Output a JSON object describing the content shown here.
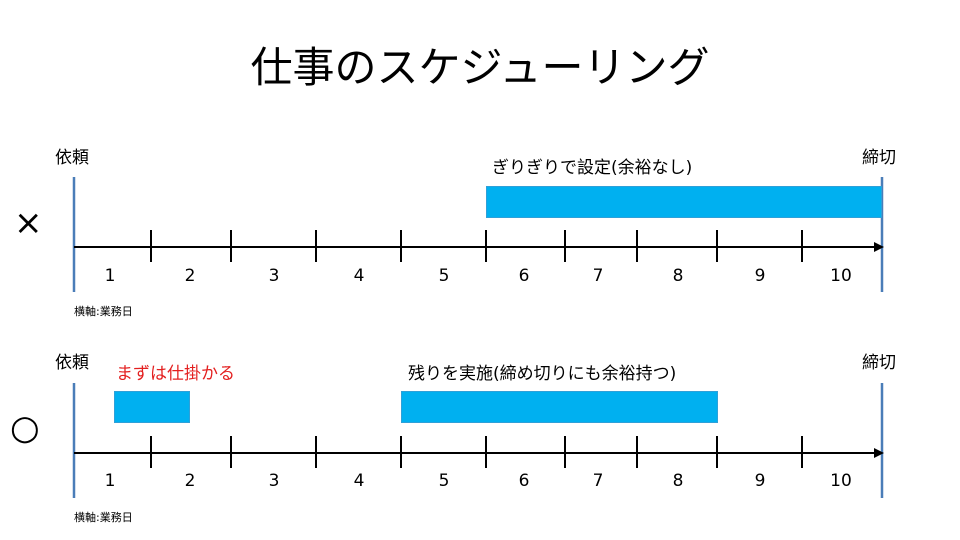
{
  "title": "仕事のスケジューリング",
  "rows": [
    {
      "mark": "×",
      "start_label": "依頼",
      "end_label": "締切",
      "task_label": "ぎりぎりで設定(余裕なし)",
      "extra_label": "",
      "x_ticks": [
        "1",
        "2",
        "3",
        "4",
        "5",
        "6",
        "7",
        "8",
        "9",
        "10"
      ],
      "x_caption": "横軸:業務日"
    },
    {
      "mark": "○",
      "start_label": "依頼",
      "end_label": "締切",
      "task_label": "残りを実施(締め切りにも余裕持つ)",
      "extra_label": "まずは仕掛かる",
      "x_ticks": [
        "1",
        "2",
        "3",
        "4",
        "5",
        "6",
        "7",
        "8",
        "9",
        "10"
      ],
      "x_caption": "横軸:業務日"
    }
  ],
  "colors": {
    "bar": "#00b0f0",
    "axis": "#000000",
    "marker": "#4a7db8",
    "highlight": "#e31f1f"
  }
}
